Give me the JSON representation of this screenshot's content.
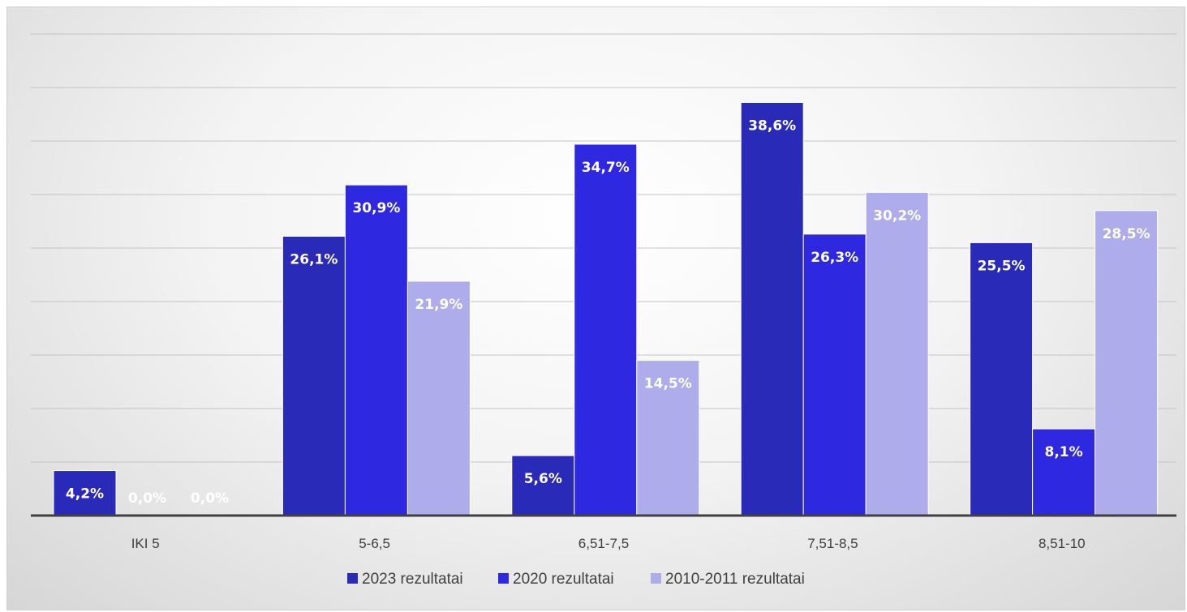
{
  "chart_data": {
    "type": "bar",
    "title": "",
    "xlabel": "",
    "ylabel": "",
    "ylim": [
      0,
      45
    ],
    "grid": true,
    "legend_position": "bottom",
    "categories": [
      "IKI 5",
      "5-6,5",
      "6,51-7,5",
      "7,51-8,5",
      "8,51-10"
    ],
    "series": [
      {
        "name": "2023 rezultatai",
        "color": "#2a2ab8",
        "values": [
          4.2,
          26.1,
          5.6,
          38.6,
          25.5
        ],
        "labels": [
          "4,2%",
          "26,1%",
          "5,6%",
          "38,6%",
          "25,5%"
        ]
      },
      {
        "name": "2020 rezultatai",
        "color": "#2e28e0",
        "values": [
          0.0,
          30.9,
          34.7,
          26.3,
          8.1
        ],
        "labels": [
          "0,0%",
          "30,9%",
          "34,7%",
          "26,3%",
          "8,1%"
        ]
      },
      {
        "name": "2010-2011 rezultatai",
        "color": "#aeaceb",
        "values": [
          0.0,
          21.9,
          14.5,
          30.2,
          28.5
        ],
        "labels": [
          "0,0%",
          "21,9%",
          "14,5%",
          "30,2%",
          "28,5%"
        ]
      }
    ]
  }
}
